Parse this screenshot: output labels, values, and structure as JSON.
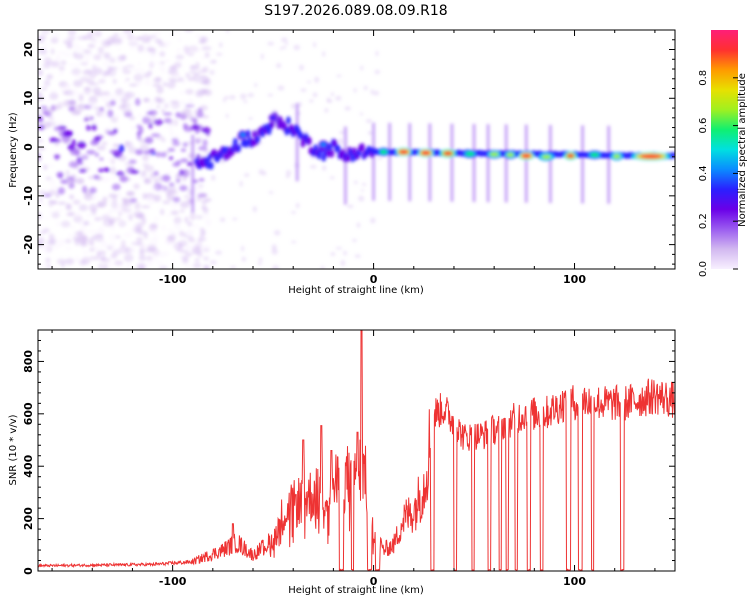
{
  "title": "S197.2026.089.08.09.R18",
  "colors": {
    "trace": "#ee3333",
    "colormap": [
      "#f8f0ff",
      "#d2b8f0",
      "#9b5cf0",
      "#6a00e8",
      "#2a20ff",
      "#0a8cff",
      "#00e0e0",
      "#10f070",
      "#a0f020",
      "#e8e000",
      "#ff9a00",
      "#ff3030",
      "#ff1e78"
    ]
  },
  "chart_data": [
    {
      "id": "spectrogram",
      "type": "heatmap",
      "xlabel": "Height of straight line (km)",
      "ylabel": "Frequency (Hz)",
      "xlim": [
        -167,
        150
      ],
      "ylim": [
        -25,
        24
      ],
      "xticks": [
        "-100",
        "0",
        "100"
      ],
      "xtick_values": [
        -100,
        0,
        100
      ],
      "yticks": [
        "20",
        "10",
        "0",
        "-10",
        "-20"
      ],
      "ytick_values": [
        20,
        10,
        0,
        -10,
        -20
      ],
      "colorbar": {
        "label": "Normalized spectral amplitude",
        "ticks": [
          "0.0",
          "0.2",
          "0.4",
          "0.6",
          "0.8"
        ],
        "tick_values": [
          0.0,
          0.2,
          0.4,
          0.6,
          0.8
        ],
        "range": [
          0,
          1
        ]
      },
      "ridge": [
        {
          "x": -85,
          "f": -3.5
        },
        {
          "x": -80,
          "f": -2.5
        },
        {
          "x": -75,
          "f": -1.5
        },
        {
          "x": -70,
          "f": -0.5
        },
        {
          "x": -65,
          "f": 2.0
        },
        {
          "x": -60,
          "f": 1.5
        },
        {
          "x": -55,
          "f": 3.0
        },
        {
          "x": -50,
          "f": 5.5
        },
        {
          "x": -45,
          "f": 4.5
        },
        {
          "x": -40,
          "f": 4.0
        },
        {
          "x": -35,
          "f": 1.5
        },
        {
          "x": -30,
          "f": 0.0
        },
        {
          "x": -25,
          "f": -1.0
        },
        {
          "x": -20,
          "f": 0.0
        },
        {
          "x": -15,
          "f": -2.0
        },
        {
          "x": -10,
          "f": -1.0
        },
        {
          "x": -5,
          "f": -1.0
        },
        {
          "x": 0,
          "f": -1.0
        },
        {
          "x": 150,
          "f": -1.8
        }
      ],
      "peaks": [
        {
          "x": -65,
          "f": 2.5,
          "a": 0.45,
          "w": 3
        },
        {
          "x": -50,
          "f": 6.0,
          "a": 0.35,
          "w": 3
        },
        {
          "x": -25,
          "f": 0.5,
          "a": 0.4,
          "w": 3
        },
        {
          "x": 5,
          "f": -1.0,
          "a": 0.6,
          "w": 4
        },
        {
          "x": 15,
          "f": -1.0,
          "a": 0.95,
          "w": 5
        },
        {
          "x": 26,
          "f": -1.2,
          "a": 0.95,
          "w": 5
        },
        {
          "x": 37,
          "f": -1.3,
          "a": 0.9,
          "w": 5
        },
        {
          "x": 48,
          "f": -1.4,
          "a": 0.6,
          "w": 5
        },
        {
          "x": 60,
          "f": -1.5,
          "a": 0.65,
          "w": 5
        },
        {
          "x": 68,
          "f": -1.6,
          "a": 0.65,
          "w": 4
        },
        {
          "x": 76,
          "f": -1.8,
          "a": 0.95,
          "w": 5
        },
        {
          "x": 86,
          "f": -2.0,
          "a": 0.7,
          "w": 5
        },
        {
          "x": 98,
          "f": -1.8,
          "a": 0.9,
          "w": 4
        },
        {
          "x": 110,
          "f": -1.6,
          "a": 0.6,
          "w": 5
        },
        {
          "x": 121,
          "f": -1.9,
          "a": 0.7,
          "w": 4
        },
        {
          "x": 138,
          "f": -1.9,
          "a": 0.95,
          "w": 12
        }
      ],
      "vertical_streaks": [
        -90,
        -38,
        -14,
        0,
        8,
        18,
        28,
        39,
        50,
        57,
        66,
        76,
        88,
        104,
        117
      ]
    },
    {
      "id": "snr",
      "type": "line",
      "xlabel": "Height of straight line (km)",
      "ylabel": "SNR (10 * v/v)",
      "xlim": [
        -167,
        150
      ],
      "ylim": [
        0,
        920
      ],
      "xticks": [
        "-100",
        "0",
        "100"
      ],
      "xtick_values": [
        -100,
        0,
        100
      ],
      "yticks": [
        "0",
        "200",
        "400",
        "600",
        "800"
      ],
      "ytick_values": [
        0,
        200,
        400,
        600,
        800
      ],
      "envelope": [
        {
          "x": -167,
          "y": 20
        },
        {
          "x": -110,
          "y": 25
        },
        {
          "x": -90,
          "y": 35
        },
        {
          "x": -75,
          "y": 80
        },
        {
          "x": -68,
          "y": 110
        },
        {
          "x": -60,
          "y": 60
        },
        {
          "x": -50,
          "y": 120
        },
        {
          "x": -45,
          "y": 220
        },
        {
          "x": -35,
          "y": 280
        },
        {
          "x": -25,
          "y": 300
        },
        {
          "x": -15,
          "y": 340
        },
        {
          "x": -10,
          "y": 380
        },
        {
          "x": -5,
          "y": 400
        },
        {
          "x": 0,
          "y": 150
        },
        {
          "x": 5,
          "y": 80
        },
        {
          "x": 10,
          "y": 100
        },
        {
          "x": 15,
          "y": 200
        },
        {
          "x": 20,
          "y": 230
        },
        {
          "x": 25,
          "y": 320
        },
        {
          "x": 30,
          "y": 600
        },
        {
          "x": 35,
          "y": 620
        },
        {
          "x": 45,
          "y": 510
        },
        {
          "x": 55,
          "y": 520
        },
        {
          "x": 65,
          "y": 560
        },
        {
          "x": 75,
          "y": 600
        },
        {
          "x": 85,
          "y": 600
        },
        {
          "x": 95,
          "y": 640
        },
        {
          "x": 105,
          "y": 650
        },
        {
          "x": 115,
          "y": 640
        },
        {
          "x": 125,
          "y": 640
        },
        {
          "x": 140,
          "y": 670
        },
        {
          "x": 150,
          "y": 650
        }
      ],
      "spikes": [
        {
          "x": -70,
          "y": 180
        },
        {
          "x": -35,
          "y": 500
        },
        {
          "x": -26,
          "y": 555
        },
        {
          "x": -21,
          "y": 460
        },
        {
          "x": -8,
          "y": 530
        },
        {
          "x": -6,
          "y": 920
        }
      ],
      "dropouts": [
        [
          -17,
          -15
        ],
        [
          -11,
          -10
        ],
        [
          -3,
          -1
        ],
        [
          1,
          3
        ],
        [
          28.5,
          30
        ],
        [
          40,
          41.3
        ],
        [
          49,
          50.2
        ],
        [
          57,
          58.3
        ],
        [
          62.5,
          63.6
        ],
        [
          66,
          67.2
        ],
        [
          70.5,
          71.6
        ],
        [
          76.5,
          78
        ],
        [
          83,
          84.3
        ],
        [
          96,
          98
        ],
        [
          102,
          103.8
        ],
        [
          108.5,
          109.5
        ],
        [
          123,
          124.5
        ]
      ]
    }
  ]
}
